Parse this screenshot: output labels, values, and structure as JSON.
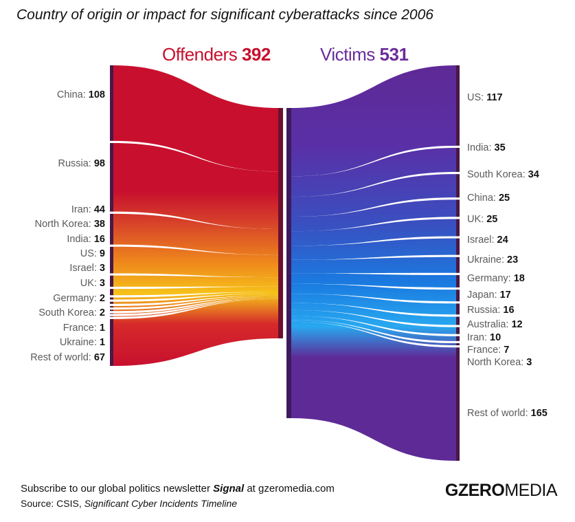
{
  "title": "Country of origin or impact for significant cyberattacks since 2006",
  "headers": {
    "offenders_label": "Offenders",
    "offenders_total": "392",
    "victims_label": "Victims",
    "victims_total": "531"
  },
  "footer": {
    "line1_prefix": "Subscribe to our global politics newsletter ",
    "line1_signal": "Signal",
    "line1_suffix": " at gzeromedia.com",
    "line2_prefix": "Source: CSIS, ",
    "line2_source": "Significant Cyber Incidents Timeline"
  },
  "logo": {
    "bold": "GZERO",
    "regular": "MEDIA"
  },
  "colors": {
    "offender_red": "#c8102e",
    "victim_purple": "#5e2a96",
    "node_dark": "#4a1846"
  },
  "chart_data": {
    "type": "sankey",
    "offenders": [
      {
        "name": "China",
        "value": 108
      },
      {
        "name": "Russia",
        "value": 98
      },
      {
        "name": "Iran",
        "value": 44
      },
      {
        "name": "North Korea",
        "value": 38
      },
      {
        "name": "India",
        "value": 16
      },
      {
        "name": "US",
        "value": 9
      },
      {
        "name": "Israel",
        "value": 3
      },
      {
        "name": "UK",
        "value": 3
      },
      {
        "name": "Germany",
        "value": 2
      },
      {
        "name": "South Korea",
        "value": 2
      },
      {
        "name": "France",
        "value": 1
      },
      {
        "name": "Ukraine",
        "value": 1
      },
      {
        "name": "Rest of world",
        "value": 67
      }
    ],
    "victims": [
      {
        "name": "US",
        "value": 117
      },
      {
        "name": "India",
        "value": 35
      },
      {
        "name": "South Korea",
        "value": 34
      },
      {
        "name": "China",
        "value": 25
      },
      {
        "name": "UK",
        "value": 25
      },
      {
        "name": "Israel",
        "value": 24
      },
      {
        "name": "Ukraine",
        "value": 23
      },
      {
        "name": "Germany",
        "value": 18
      },
      {
        "name": "Japan",
        "value": 17
      },
      {
        "name": "Russia",
        "value": 16
      },
      {
        "name": "Australia",
        "value": 12
      },
      {
        "name": "Iran",
        "value": 10
      },
      {
        "name": "France",
        "value": 7
      },
      {
        "name": "North Korea",
        "value": 3
      },
      {
        "name": "Rest of world",
        "value": 165
      }
    ]
  }
}
